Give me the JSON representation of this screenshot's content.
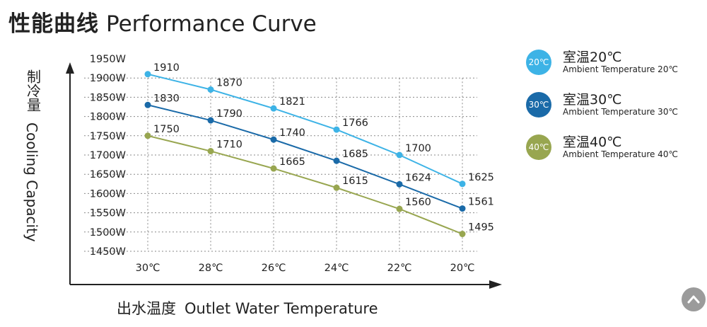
{
  "title": {
    "cn": "性能曲线",
    "en": "Performance Curve"
  },
  "axes": {
    "ylabel_cn": "制冷量",
    "ylabel_en": "Cooling Capacity",
    "xlabel_cn": "出水温度",
    "xlabel_en": "Outlet Water Temperature"
  },
  "legend": [
    {
      "badge": "20℃",
      "title": "室温20℃",
      "subtitle": "Ambient Temperature 20℃",
      "color": "#3db3e6"
    },
    {
      "badge": "30℃",
      "title": "室温30℃",
      "subtitle": "Ambient Temperature 30℃",
      "color": "#1a6aa8"
    },
    {
      "badge": "40℃",
      "title": "室温40℃",
      "subtitle": "Ambient Temperature 40℃",
      "color": "#98a650"
    }
  ],
  "chart_data": {
    "type": "line",
    "title": "性能曲线 Performance Curve",
    "xlabel": "出水温度 Outlet Water Temperature",
    "ylabel": "制冷量 Cooling Capacity",
    "categories": [
      "30℃",
      "28℃",
      "26℃",
      "24℃",
      "22℃",
      "20℃"
    ],
    "y_ticks": [
      "1950W",
      "1900W",
      "1850W",
      "1800W",
      "1750W",
      "1700W",
      "1650W",
      "1600W",
      "1550W",
      "1500W",
      "1450W"
    ],
    "ylim": [
      1450,
      1950
    ],
    "grid": true,
    "series": [
      {
        "name": "室温20℃ Ambient Temperature 20℃",
        "color": "#3db3e6",
        "values": [
          1910,
          1870,
          1821,
          1766,
          1700,
          1625
        ]
      },
      {
        "name": "室温30℃ Ambient Temperature 30℃",
        "color": "#1a6aa8",
        "values": [
          1830,
          1790,
          1740,
          1685,
          1624,
          1561
        ]
      },
      {
        "name": "室温40℃ Ambient Temperature 40℃",
        "color": "#98a650",
        "values": [
          1750,
          1710,
          1665,
          1615,
          1560,
          1495
        ]
      }
    ]
  }
}
